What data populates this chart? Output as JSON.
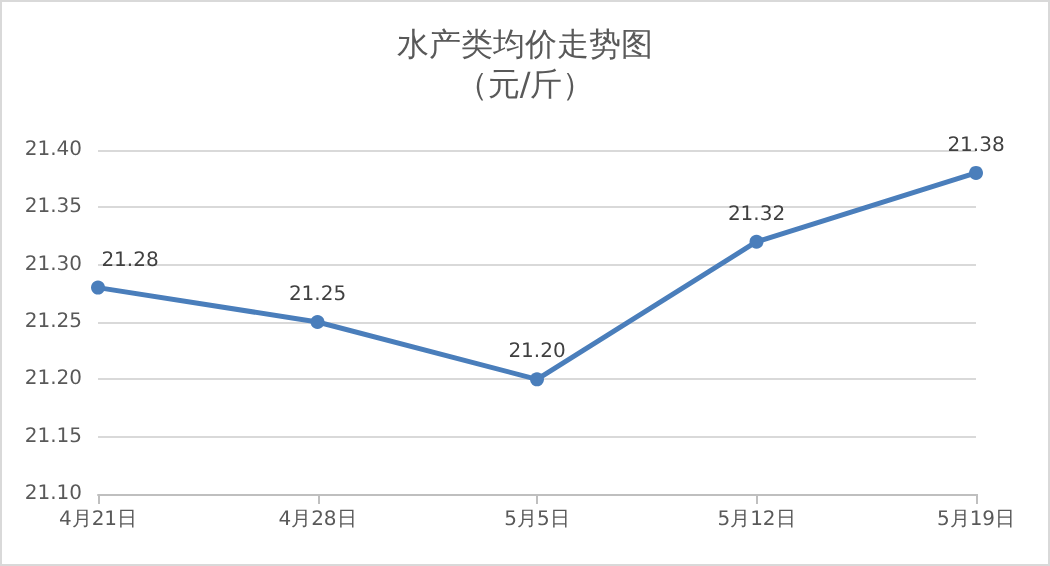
{
  "chart_data": {
    "type": "line",
    "title": "水产类均价走势图",
    "subtitle": "（元/斤）",
    "categories": [
      "4月21日",
      "4月28日",
      "5月5日",
      "5月12日",
      "5月19日"
    ],
    "series": [
      {
        "color": "#4a7ebb",
        "values": [
          21.28,
          21.25,
          21.2,
          21.32,
          21.38
        ],
        "value_labels": [
          "21.28",
          "21.25",
          "21.20",
          "21.32",
          "21.38"
        ]
      }
    ],
    "ylim": [
      21.1,
      21.4
    ],
    "yticks": [
      {
        "value": 21.1,
        "label": "21.10"
      },
      {
        "value": 21.15,
        "label": "21.15"
      },
      {
        "value": 21.2,
        "label": "21.20"
      },
      {
        "value": 21.25,
        "label": "21.25"
      },
      {
        "value": 21.3,
        "label": "21.30"
      },
      {
        "value": 21.35,
        "label": "21.35"
      },
      {
        "value": 21.4,
        "label": "21.40"
      }
    ],
    "grid": "y",
    "marker": "circle",
    "line_style": "solid"
  }
}
